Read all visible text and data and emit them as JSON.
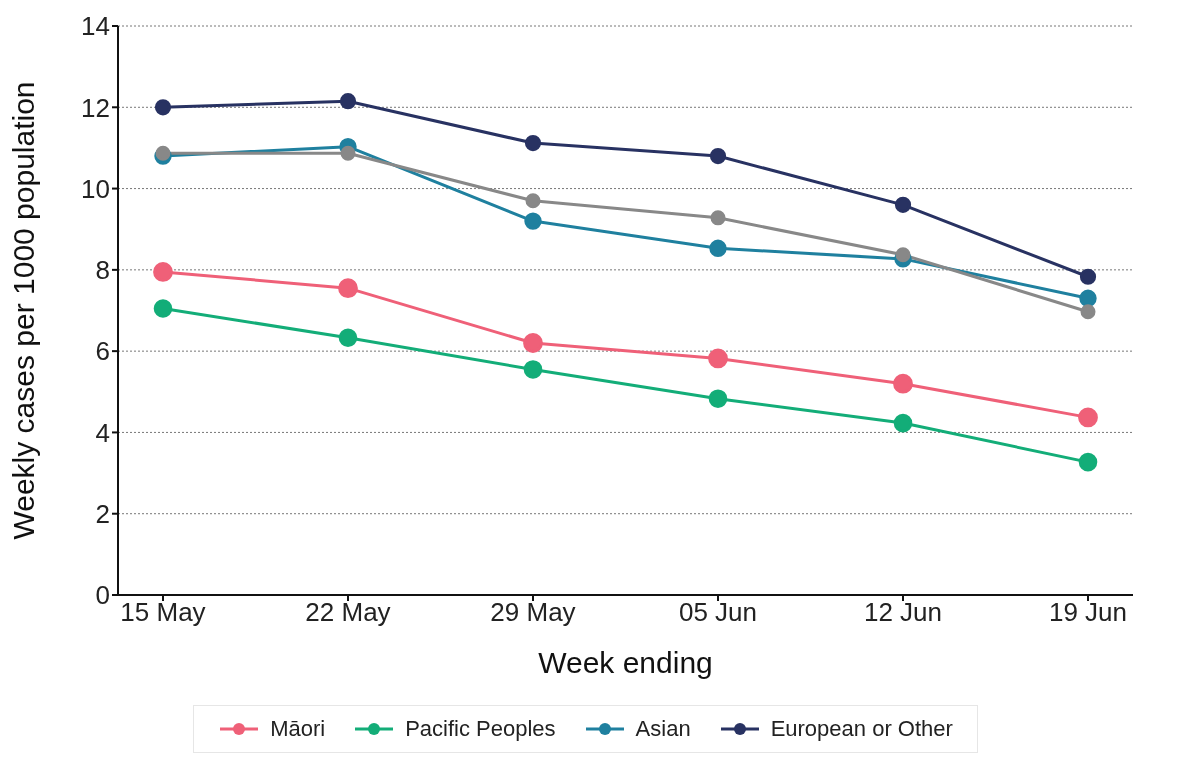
{
  "chart_data": {
    "type": "line",
    "xlabel": "Week ending",
    "ylabel": "Weekly cases per 1000 population",
    "categories": [
      "15 May",
      "22 May",
      "29 May",
      "05 Jun",
      "12 Jun",
      "19 Jun"
    ],
    "series": [
      {
        "name": "Māori",
        "color": "#ef6078",
        "values": [
          7.95,
          7.55,
          6.2,
          5.82,
          5.2,
          4.37
        ]
      },
      {
        "name": "Pacific Peoples",
        "color": "#13ad78",
        "values": [
          7.05,
          6.33,
          5.55,
          4.83,
          4.23,
          3.27
        ]
      },
      {
        "name": "Asian",
        "color": "#1f809f",
        "values": [
          10.8,
          11.03,
          9.2,
          8.53,
          8.27,
          7.3
        ]
      },
      {
        "name": "European or Other",
        "color": "#283262",
        "values": [
          12.0,
          12.15,
          11.12,
          10.8,
          9.6,
          7.83
        ]
      },
      {
        "color": "#888888",
        "values": [
          10.87,
          10.87,
          9.7,
          9.28,
          8.37,
          6.97
        ]
      }
    ],
    "ylim": [
      0,
      14
    ],
    "yticks": [
      0,
      2,
      4,
      6,
      8,
      10,
      12,
      14
    ],
    "grid": "y",
    "legend": "bottom",
    "marker": "circle",
    "line_style": "solid"
  }
}
